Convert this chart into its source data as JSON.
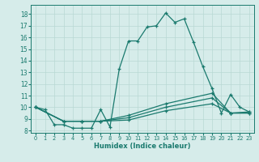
{
  "title": "",
  "xlabel": "Humidex (Indice chaleur)",
  "bg_color": "#d6ecea",
  "grid_color": "#b8d8d4",
  "line_color": "#1a7a6e",
  "xlim": [
    -0.5,
    23.5
  ],
  "ylim": [
    7.8,
    18.8
  ],
  "xticks": [
    0,
    1,
    2,
    3,
    4,
    5,
    6,
    7,
    8,
    9,
    10,
    11,
    12,
    13,
    14,
    15,
    16,
    17,
    18,
    19,
    20,
    21,
    22,
    23
  ],
  "yticks": [
    8,
    9,
    10,
    11,
    12,
    13,
    14,
    15,
    16,
    17,
    18
  ],
  "series": [
    {
      "x": [
        0,
        1,
        2,
        3,
        4,
        5,
        6,
        7,
        8,
        9,
        10,
        11,
        12,
        13,
        14,
        15,
        16,
        17,
        18,
        19,
        20,
        21,
        22,
        23
      ],
      "y": [
        10,
        9.8,
        8.5,
        8.5,
        8.2,
        8.2,
        8.2,
        9.8,
        8.3,
        13.3,
        15.7,
        15.7,
        16.9,
        17.0,
        18.1,
        17.3,
        17.6,
        15.6,
        13.5,
        11.6,
        9.5,
        11.1,
        10.0,
        9.6
      ]
    },
    {
      "x": [
        0,
        3,
        5,
        7,
        10,
        14,
        19,
        21,
        23
      ],
      "y": [
        10,
        8.8,
        8.8,
        8.8,
        9.3,
        10.3,
        11.2,
        9.5,
        9.6
      ]
    },
    {
      "x": [
        0,
        3,
        5,
        7,
        10,
        14,
        19,
        21,
        23
      ],
      "y": [
        10,
        8.8,
        8.8,
        8.8,
        9.1,
        10.0,
        10.8,
        9.5,
        9.5
      ]
    },
    {
      "x": [
        0,
        3,
        5,
        7,
        10,
        14,
        19,
        21,
        23
      ],
      "y": [
        10,
        8.8,
        8.8,
        8.8,
        8.9,
        9.7,
        10.3,
        9.5,
        9.5
      ]
    }
  ]
}
